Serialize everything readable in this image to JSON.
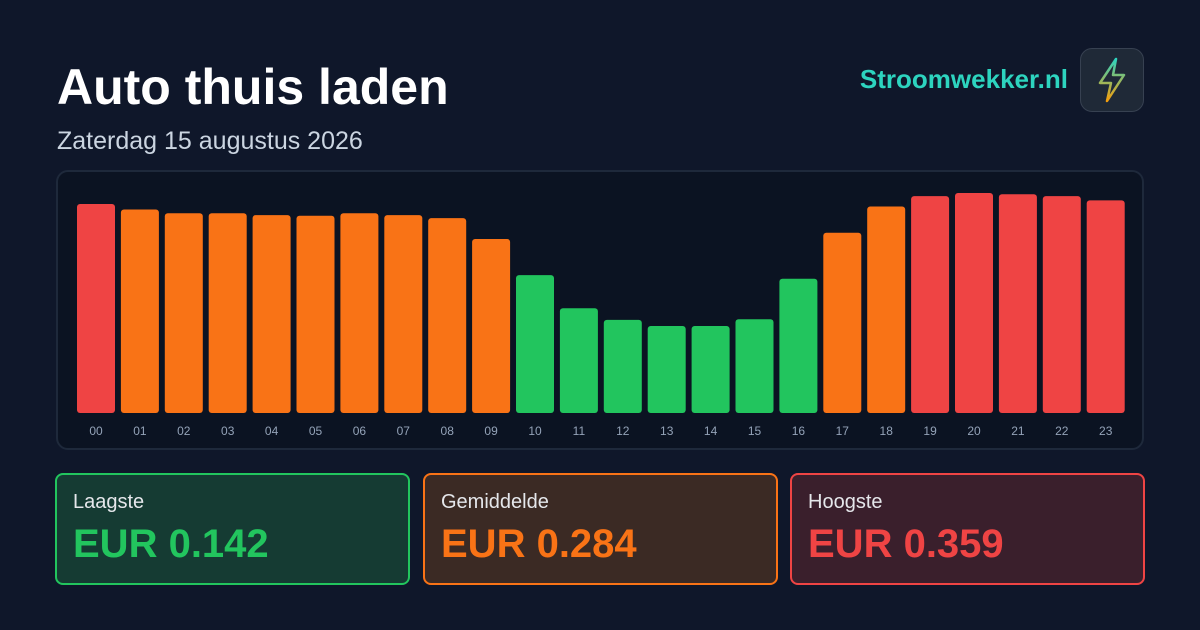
{
  "header": {
    "title": "Auto thuis laden",
    "subtitle": "Zaterdag 15 augustus 2026",
    "brand": "Stroomwekker.nl"
  },
  "logo": {
    "icon": "lightning-bolt-icon"
  },
  "colors": {
    "background": "#0f172a",
    "low": "#22c55e",
    "mid": "#f97316",
    "high": "#ef4444",
    "brand": "#2dd4bf",
    "tick": "#94a3b8"
  },
  "chart_data": {
    "type": "bar",
    "categories": [
      "00",
      "01",
      "02",
      "03",
      "04",
      "05",
      "06",
      "07",
      "08",
      "09",
      "10",
      "11",
      "12",
      "13",
      "14",
      "15",
      "16",
      "17",
      "18",
      "19",
      "20",
      "21",
      "22",
      "23"
    ],
    "values": [
      0.341,
      0.332,
      0.326,
      0.326,
      0.323,
      0.322,
      0.326,
      0.323,
      0.318,
      0.284,
      0.225,
      0.171,
      0.152,
      0.142,
      0.142,
      0.153,
      0.219,
      0.294,
      0.337,
      0.354,
      0.359,
      0.357,
      0.354,
      0.347
    ],
    "levels": [
      "high",
      "mid",
      "mid",
      "mid",
      "mid",
      "mid",
      "mid",
      "mid",
      "mid",
      "mid",
      "low",
      "low",
      "low",
      "low",
      "low",
      "low",
      "low",
      "mid",
      "mid",
      "high",
      "high",
      "high",
      "high",
      "high"
    ],
    "ylim": [
      0,
      0.359
    ],
    "grid": false,
    "title": "",
    "xlabel": "",
    "ylabel": ""
  },
  "stats": {
    "low": {
      "label": "Laagste",
      "value": "EUR 0.142"
    },
    "avg": {
      "label": "Gemiddelde",
      "value": "EUR 0.284"
    },
    "high": {
      "label": "Hoogste",
      "value": "EUR 0.359"
    }
  }
}
